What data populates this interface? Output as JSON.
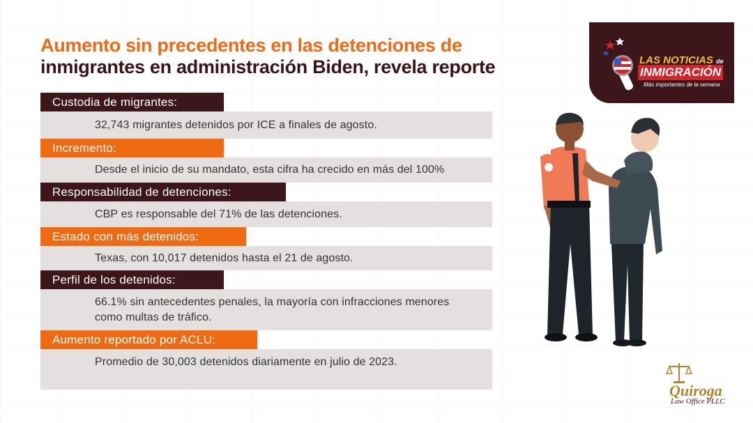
{
  "title": {
    "line1": "Aumento sin precedentes en las detenciones de",
    "line2": "inmigrantes en administración Biden, revela reporte"
  },
  "sections": [
    {
      "label": "Custodia de migrantes:",
      "text": "32,743 migrantes detenidos por ICE a finales de agosto."
    },
    {
      "label": "Incremento:",
      "text": "Desde el inicio de su mandato, esta cifra ha crecido en más del 100%"
    },
    {
      "label": "Responsabilidad de detenciones:",
      "text": "CBP es responsable del 71% de las detenciones."
    },
    {
      "label": "Estado con más detenidos:",
      "text": "Texas, con 10,017 detenidos hasta el 21 de agosto."
    },
    {
      "label": "Perfil de los detenidos:",
      "text_line1": "66.1% sin antecedentes penales, la mayoría con infracciones menores",
      "text_line2": "como multas de tráfico."
    },
    {
      "label": "Aumento reportado por ACLU:",
      "text": "Promedio de 30,003 detenidos diariamente en julio de 2023."
    }
  ],
  "logo": {
    "line1": "LAS NOTICIAS",
    "line1b": "de",
    "line2": "INMIGRACIÓN",
    "line3": "Más importantes de la semana"
  },
  "firm": {
    "name": "Quiroga",
    "subtitle": "Law Office PLLC"
  },
  "colors": {
    "dark": "#3d161b",
    "orange": "#f06a12",
    "panel": "#e3e0df"
  }
}
